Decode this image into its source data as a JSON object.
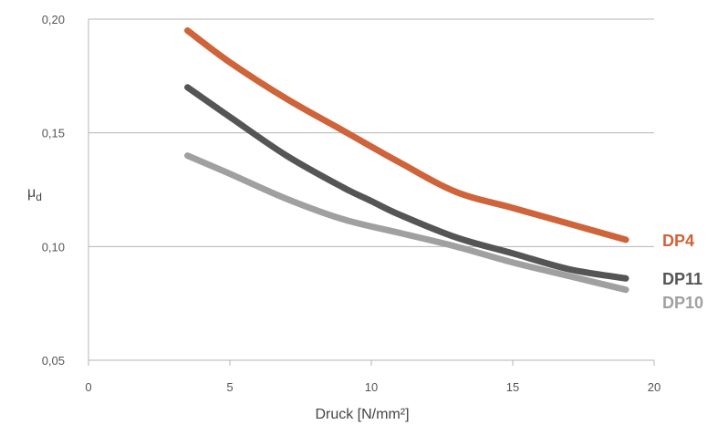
{
  "chart_data": {
    "type": "line",
    "xlabel": "Druck [N/mm²]",
    "ylabel": "μd",
    "xlim": [
      0,
      20
    ],
    "ylim": [
      0.05,
      0.2
    ],
    "x_ticks": [
      0,
      5,
      10,
      15,
      20
    ],
    "x_tick_labels": [
      "0",
      "5",
      "10",
      "15",
      "20"
    ],
    "y_ticks": [
      0.05,
      0.1,
      0.15,
      0.2
    ],
    "y_tick_labels": [
      "0,05",
      "0,10",
      "0,15",
      "0,20"
    ],
    "grid": "horizontal",
    "legend": "right, at line ends",
    "series": [
      {
        "name": "DP4",
        "color": "#cf6339",
        "x": [
          3.5,
          5,
          7,
          9,
          11,
          13,
          15,
          17,
          19
        ],
        "y": [
          0.195,
          0.181,
          0.165,
          0.151,
          0.137,
          0.124,
          0.117,
          0.11,
          0.103
        ]
      },
      {
        "name": "DP11",
        "color": "#555555",
        "x": [
          3.5,
          5,
          7,
          9,
          10,
          11,
          13,
          15,
          17,
          19
        ],
        "y": [
          0.17,
          0.157,
          0.14,
          0.126,
          0.12,
          0.114,
          0.104,
          0.097,
          0.09,
          0.086
        ]
      },
      {
        "name": "DP10",
        "color": "#a0a0a0",
        "x": [
          3.5,
          5,
          7,
          9,
          11,
          13,
          15,
          17,
          19
        ],
        "y": [
          0.14,
          0.132,
          0.121,
          0.112,
          0.106,
          0.1,
          0.093,
          0.087,
          0.081
        ]
      }
    ]
  }
}
